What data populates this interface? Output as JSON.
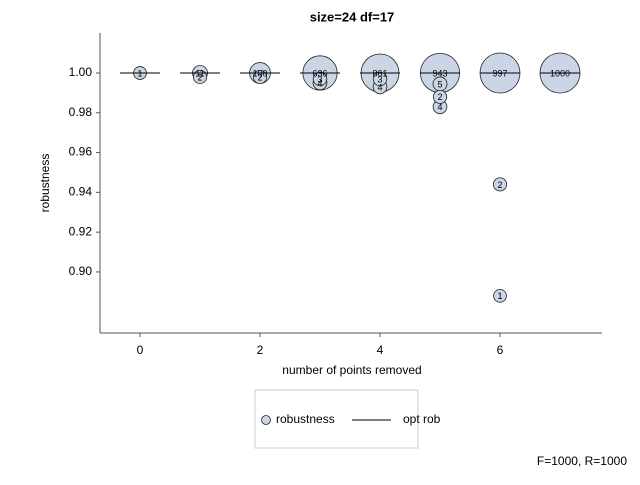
{
  "chart_data": {
    "type": "bubble",
    "title": "size=24 df=17",
    "xlabel": "number of points removed",
    "ylabel": "robustness",
    "xlim": [
      -0.667,
      7.7
    ],
    "ylim": [
      0.8693,
      1.0201
    ],
    "xticks": [
      0,
      2,
      4,
      6
    ],
    "yticks": [
      {
        "value": 0.9,
        "label": "0.90"
      },
      0.92,
      0.94,
      0.96,
      0.98,
      {
        "value": 1,
        "label": "1.00"
      }
    ],
    "series": [
      {
        "name": "robustness",
        "color": "#cbd5e5",
        "x": [
          0,
          1,
          1,
          2,
          2,
          3,
          3,
          3,
          4,
          4,
          4,
          5,
          5,
          5,
          5,
          6,
          6,
          6,
          7
        ],
        "values": [
          1.0,
          1.0,
          0.998,
          1.0,
          0.998,
          1.0,
          0.997,
          0.995,
          1.0,
          0.997,
          0.993,
          1.0,
          0.9945,
          0.988,
          0.983,
          1.0,
          0.944,
          0.888,
          1.0
        ],
        "sizes": [
          1,
          11,
          2,
          100,
          2,
          636,
          3,
          4,
          861,
          3,
          4,
          943,
          5,
          2,
          4,
          997,
          2,
          1,
          1000
        ]
      },
      {
        "name": "opt rob",
        "color": "#000000",
        "x": [
          0,
          1,
          2,
          3,
          4,
          5,
          6,
          7
        ],
        "values": [
          1,
          1,
          1,
          1,
          1,
          1,
          1,
          1
        ]
      }
    ],
    "footnote": "F=1000, R=1000"
  }
}
